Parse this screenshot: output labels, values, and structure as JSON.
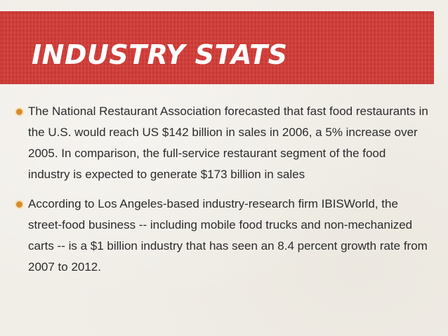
{
  "slide": {
    "title": "INDUSTRY STATS",
    "bullets": [
      "The National Restaurant Association forecasted that fast food restaurants in the U.S. would reach US $142 billion in sales in 2006, a 5% increase over 2005. In comparison, the full-service restaurant segment of the food industry is expected to generate $173 billion in sales",
      "According to Los Angeles-based industry-research firm IBISWorld, the street-food business -- including mobile food trucks and non-mechanized carts -- is a $1 billion industry that has seen an 8.4 percent growth rate from 2007 to 2012."
    ]
  },
  "colors": {
    "banner": "#d23b36",
    "bullet": "#d98a2b",
    "text": "#2c2c2c",
    "background": "#f1eee8"
  }
}
